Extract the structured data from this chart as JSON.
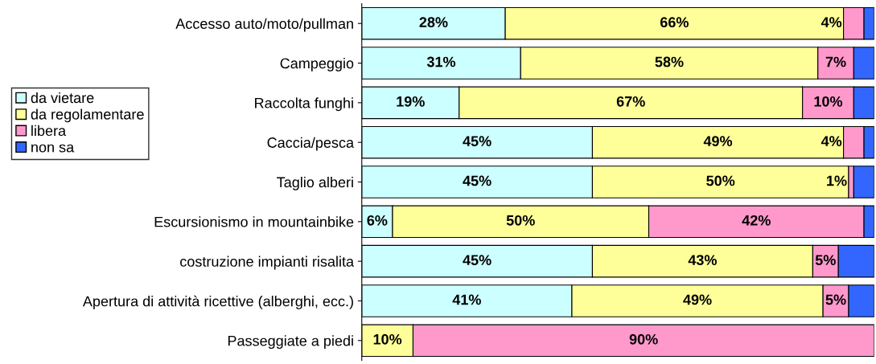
{
  "chart_data": {
    "type": "bar",
    "orientation": "horizontal",
    "stacked": true,
    "categories": [
      "Accesso auto/moto/pullman",
      "Campeggio",
      "Raccolta funghi",
      "Caccia/pesca",
      "Taglio alberi",
      "Escursionismo in mountainbike",
      "costruzione impianti risalita",
      "Apertura di attività ricettive (alberghi, ecc.)",
      "Passeggiate a piedi"
    ],
    "series": [
      {
        "name": "da vietare",
        "color": "#ccffff",
        "values": [
          28,
          31,
          19,
          45,
          45,
          6,
          45,
          41,
          0
        ],
        "value_labels": [
          "28%",
          "31%",
          "19%",
          "45%",
          "45%",
          "6%",
          "45%",
          "41%",
          null
        ]
      },
      {
        "name": "da regolamentare",
        "color": "#ffff99",
        "values": [
          66,
          58,
          67,
          49,
          50,
          50,
          43,
          49,
          10
        ],
        "value_labels": [
          "66%",
          "58%",
          "67%",
          "49%",
          "50%",
          "50%",
          "43%",
          "49%",
          "10%"
        ]
      },
      {
        "name": "libera",
        "color": "#ff99cc",
        "values": [
          4,
          7,
          10,
          4,
          1,
          42,
          5,
          5,
          90
        ],
        "value_labels": [
          "4%",
          "7%",
          "10%",
          "4%",
          "1%",
          "42%",
          "5%",
          "5%",
          "90%"
        ]
      },
      {
        "name": "non sa",
        "color": "#3366ff",
        "values": [
          2,
          4,
          4,
          2,
          4,
          2,
          7,
          5,
          0
        ],
        "value_labels": [
          null,
          null,
          null,
          null,
          null,
          null,
          null,
          null,
          null
        ]
      }
    ],
    "xlim": [
      0,
      100
    ],
    "tick_labels": "y",
    "legend": "left",
    "grid": false
  }
}
